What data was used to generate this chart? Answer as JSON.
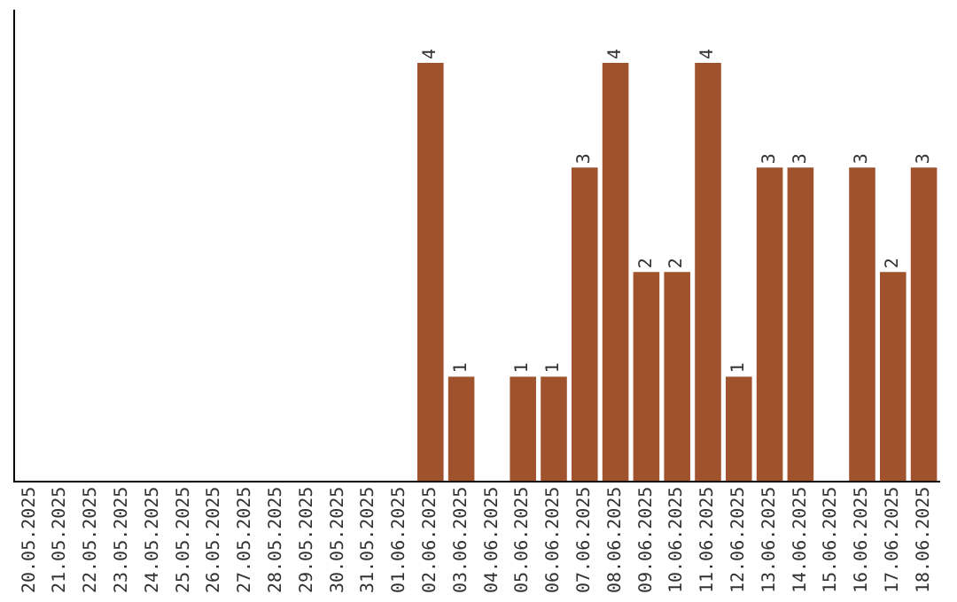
{
  "chart_data": {
    "type": "bar",
    "categories": [
      "20.05.2025",
      "21.05.2025",
      "22.05.2025",
      "23.05.2025",
      "24.05.2025",
      "25.05.2025",
      "26.05.2025",
      "27.05.2025",
      "28.05.2025",
      "29.05.2025",
      "30.05.2025",
      "31.05.2025",
      "01.06.2025",
      "02.06.2025",
      "03.06.2025",
      "04.06.2025",
      "05.06.2025",
      "06.06.2025",
      "07.06.2025",
      "08.06.2025",
      "09.06.2025",
      "10.06.2025",
      "11.06.2025",
      "12.06.2025",
      "13.06.2025",
      "14.06.2025",
      "15.06.2025",
      "16.06.2025",
      "17.06.2025",
      "18.06.2025"
    ],
    "values": [
      null,
      null,
      null,
      null,
      null,
      null,
      null,
      null,
      null,
      null,
      null,
      null,
      null,
      4,
      1,
      null,
      1,
      1,
      3,
      4,
      2,
      2,
      4,
      1,
      3,
      3,
      null,
      3,
      2,
      3
    ],
    "value_labels": [
      null,
      null,
      null,
      null,
      null,
      null,
      null,
      null,
      null,
      null,
      null,
      null,
      null,
      "4",
      "1",
      null,
      "1",
      "1",
      "3",
      "4",
      "2",
      "2",
      "4",
      "1",
      "3",
      "3",
      null,
      "3",
      "2",
      "3"
    ],
    "color": "#a0522d",
    "grid": false,
    "legend": false,
    "tick_labels": "x"
  }
}
